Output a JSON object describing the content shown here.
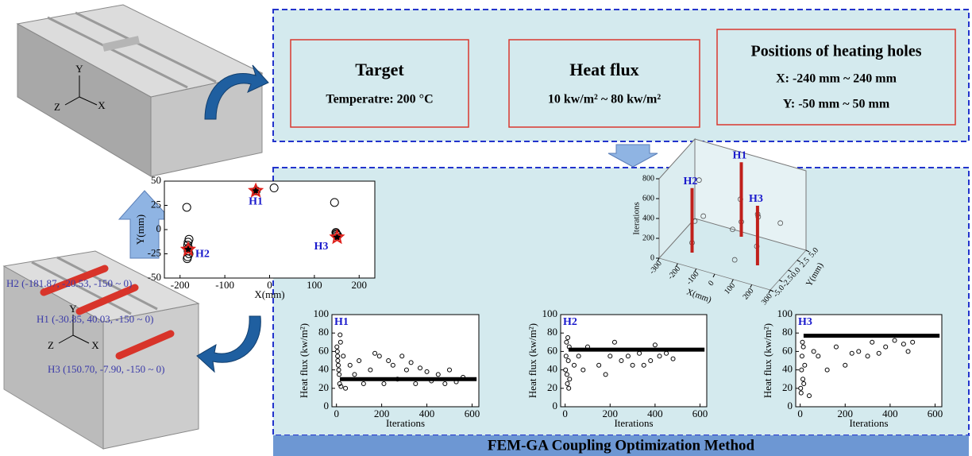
{
  "left_panel": {
    "top_block_axes": [
      "Y",
      "Z",
      "X"
    ],
    "bottom_block_axes": [
      "Y",
      "Z",
      "X"
    ],
    "hole_labels": [
      "H2 (-181.87, -20.53, -150 ~ 0)",
      "H1 (-30.85, 40.03, -150 ~ 0)",
      "H3 (150.70, -7.90, -150 ~ 0)"
    ]
  },
  "inputs": [
    {
      "title": "Target",
      "lines": [
        "Temperatre: 200 °C"
      ]
    },
    {
      "title": "Heat flux",
      "lines": [
        "10 kw/m² ~ 80 kw/m²"
      ]
    },
    {
      "title": "Positions of heating holes",
      "lines": [
        "X: -240 mm ~ 240 mm",
        "Y: -50 mm ~ 50 mm"
      ]
    }
  ],
  "chart_data": [
    {
      "type": "scatter",
      "xlabel": "X(mm)",
      "ylabel": "Y(mm)",
      "xlim": [
        -235,
        235
      ],
      "ylim": [
        -50,
        50
      ],
      "xticks": [
        -200,
        -100,
        0,
        100,
        200
      ],
      "yticks": [
        -50,
        -25,
        0,
        25,
        50
      ],
      "points": {
        "x": [
          -185,
          -180,
          -182,
          -183,
          -181,
          -182,
          -180,
          -183,
          -184,
          -30,
          10,
          145,
          148,
          150,
          152,
          149
        ],
        "y": [
          23,
          -10,
          -13,
          -16,
          -19,
          -22,
          -25,
          -28,
          -30,
          40,
          43,
          28,
          -3,
          -5,
          -6,
          -4
        ]
      },
      "optimum": {
        "x": [
          -30.85,
          -181.87,
          150.7
        ],
        "y": [
          40.03,
          -20.53,
          -7.9
        ],
        "labels": [
          "H1",
          "H2",
          "H3"
        ],
        "color": "#e0201b"
      }
    },
    {
      "type": "scatter3d",
      "xlabel": "X(mm)",
      "ylabel": "Y(mm)",
      "zlabel": "Iterations",
      "xlim": [
        -300,
        300
      ],
      "ylim": [
        -5,
        5
      ],
      "zlim": [
        0,
        800
      ],
      "xticks": [
        -300,
        -200,
        -100,
        0,
        100,
        200,
        300
      ],
      "yticks": [
        {
          "value": -5,
          "label": "-5.0"
        },
        {
          "value": -2.5,
          "label": "-2.5"
        },
        {
          "value": 0,
          "label": "0.0"
        },
        {
          "value": 2.5,
          "label": "2.5"
        },
        {
          "value": 5,
          "label": "5.0"
        }
      ],
      "zticks": [
        0,
        200,
        400,
        600,
        800
      ],
      "points": {
        "x": [
          -180,
          -175,
          -30,
          -25,
          150,
          145,
          0,
          100,
          -100,
          50,
          -200,
          200
        ],
        "y": [
          -2,
          -1.5,
          4,
          3.5,
          -1,
          -0.5,
          0,
          2,
          -3,
          -2,
          1,
          3
        ],
        "z": [
          100,
          300,
          150,
          400,
          200,
          500,
          250,
          350,
          450,
          50,
          600,
          300
        ]
      },
      "bars": {
        "x": [
          -180,
          -30,
          150
        ],
        "y": [
          -2,
          4,
          -0.8
        ],
        "z": [
          650,
          750,
          600
        ],
        "labels": [
          "H2",
          "H1",
          "H3"
        ],
        "color": "#c0201b"
      }
    },
    {
      "type": "scatter",
      "label": "H1",
      "xlabel": "Iterations",
      "ylabel": "Heat flux (kw/m²)",
      "xlim": [
        -20,
        630
      ],
      "ylim": [
        0,
        100
      ],
      "xticks": [
        0,
        200,
        400,
        600
      ],
      "yticks": [
        0,
        20,
        40,
        60,
        80,
        100
      ],
      "points": {
        "x": [
          2,
          4,
          5,
          6,
          8,
          10,
          12,
          14,
          16,
          18,
          20,
          30,
          40,
          60,
          80,
          100,
          120,
          150,
          170,
          190,
          210,
          230,
          250,
          270,
          290,
          310,
          330,
          350,
          370,
          400,
          420,
          450,
          480,
          500,
          530,
          560
        ],
        "y": [
          65,
          60,
          55,
          50,
          45,
          40,
          35,
          25,
          78,
          70,
          22,
          55,
          20,
          45,
          35,
          50,
          25,
          40,
          58,
          55,
          25,
          50,
          45,
          30,
          55,
          40,
          48,
          25,
          42,
          38,
          28,
          35,
          25,
          40,
          27,
          32
        ]
      },
      "converged": {
        "x": [
          15,
          620
        ],
        "y": [
          30,
          30
        ]
      }
    },
    {
      "type": "scatter",
      "label": "H2",
      "xlabel": "Iterations",
      "ylabel": "Heat flux (kw/m²)",
      "xlim": [
        -20,
        630
      ],
      "ylim": [
        0,
        100
      ],
      "xticks": [
        0,
        200,
        400,
        600
      ],
      "yticks": [
        0,
        20,
        40,
        60,
        80,
        100
      ],
      "points": {
        "x": [
          2,
          4,
          6,
          8,
          10,
          12,
          14,
          16,
          18,
          20,
          40,
          60,
          80,
          100,
          150,
          180,
          200,
          220,
          250,
          280,
          300,
          330,
          350,
          380,
          400,
          420,
          450,
          480
        ],
        "y": [
          40,
          55,
          70,
          35,
          25,
          75,
          50,
          20,
          65,
          30,
          45,
          55,
          40,
          65,
          45,
          35,
          55,
          70,
          50,
          55,
          45,
          58,
          45,
          50,
          67,
          55,
          58,
          52
        ]
      },
      "converged": {
        "x": [
          15,
          620
        ],
        "y": [
          62,
          62
        ]
      }
    },
    {
      "type": "scatter",
      "label": "H3",
      "xlabel": "Iterations",
      "ylabel": "Heat flux (kw/m²)",
      "xlim": [
        -20,
        630
      ],
      "ylim": [
        0,
        100
      ],
      "xticks": [
        0,
        200,
        400,
        600
      ],
      "yticks": [
        0,
        20,
        40,
        60,
        80,
        100
      ],
      "points": {
        "x": [
          2,
          4,
          6,
          8,
          10,
          12,
          14,
          16,
          20,
          40,
          60,
          80,
          120,
          160,
          200,
          230,
          260,
          300,
          320,
          350,
          380,
          420,
          460,
          480,
          500
        ],
        "y": [
          20,
          15,
          40,
          55,
          70,
          30,
          65,
          25,
          45,
          12,
          60,
          55,
          40,
          65,
          45,
          58,
          60,
          55,
          70,
          58,
          65,
          72,
          68,
          60,
          70
        ]
      },
      "converged": {
        "x": [
          15,
          620
        ],
        "y": [
          77,
          77
        ]
      }
    }
  ],
  "banner": "FEM-GA Coupling Optimization Method"
}
